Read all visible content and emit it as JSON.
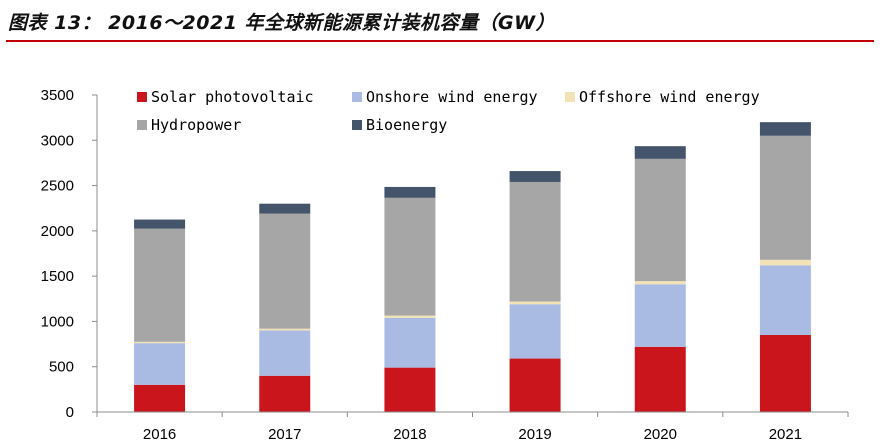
{
  "title": "图表 13： 2016～2021 年全球新能源累计装机容量（GW）",
  "colors": {
    "title_rule": "#C00000",
    "axis": "#8C8C8C"
  },
  "chart_data": {
    "type": "bar",
    "stacked": true,
    "categories": [
      "2016",
      "2017",
      "2018",
      "2019",
      "2020",
      "2021"
    ],
    "series": [
      {
        "name": "Solar photovoltaic",
        "color": "#C9151B",
        "values": [
          300,
          400,
          490,
          590,
          720,
          850
        ]
      },
      {
        "name": "Onshore wind energy",
        "color": "#A9BBE3",
        "values": [
          460,
          500,
          550,
          600,
          690,
          770
        ]
      },
      {
        "name": "Offshore wind energy",
        "color": "#F2E2B6",
        "values": [
          15,
          20,
          25,
          30,
          35,
          60
        ]
      },
      {
        "name": "Hydropower",
        "color": "#A6A6A6",
        "values": [
          1250,
          1270,
          1300,
          1320,
          1350,
          1370
        ]
      },
      {
        "name": "Bioenergy",
        "color": "#44546A",
        "values": [
          100,
          110,
          120,
          120,
          140,
          150
        ]
      }
    ],
    "ylim": [
      0,
      3500
    ],
    "yticks": [
      0,
      500,
      1000,
      1500,
      2000,
      2500,
      3000,
      3500
    ],
    "xlabel": "",
    "ylabel": "",
    "grid": false,
    "legend_placement": "top-left"
  }
}
